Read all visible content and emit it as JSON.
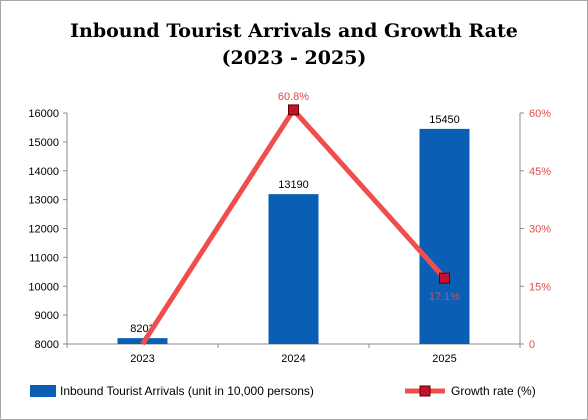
{
  "chart_data": {
    "type": "bar",
    "title_line1": "Inbound Tourist Arrivals and Growth Rate",
    "title_line2": "(2023 - 2025)",
    "categories": [
      "2023",
      "2024",
      "2025"
    ],
    "series": [
      {
        "name": "Inbound Tourist Arrivals (unit in 10,000 persons)",
        "type": "bar",
        "axis": "left",
        "color": "#0a5fb5",
        "values": [
          8203,
          13190,
          15450
        ],
        "labels": [
          "8203",
          "13190",
          "15450"
        ]
      },
      {
        "name": "Growth rate (%)",
        "type": "line",
        "axis": "right",
        "color": "#f04e4e",
        "marker_color": "#c8102e",
        "values": [
          0,
          60.8,
          17.1
        ],
        "labels": [
          "",
          "60.8%",
          "17.1%"
        ]
      }
    ],
    "y_left": {
      "min": 8000,
      "max": 16000,
      "ticks": [
        "8000",
        "9000",
        "10000",
        "11000",
        "12000",
        "13000",
        "14000",
        "15000",
        "16000"
      ]
    },
    "y_right": {
      "min": 0,
      "max": 60,
      "ticks": [
        "0",
        "15%",
        "30%",
        "45%",
        "60%"
      ]
    },
    "grid": false,
    "legend": "bottom"
  }
}
